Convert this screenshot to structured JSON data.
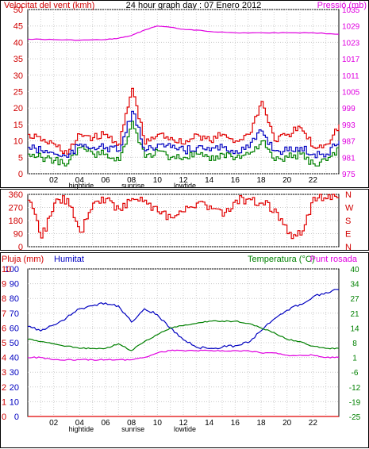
{
  "chart_data": [
    {
      "type": "line",
      "title": "24 hour graph day : 07 Enero 2012",
      "left_axis_label": "Velocitat del vent (kmh)",
      "right_axis_label": "Pressió (mb)",
      "left_ticks": [
        "0",
        "5",
        "10",
        "15",
        "20",
        "25",
        "30",
        "35",
        "40",
        "45",
        "50"
      ],
      "left_ylim": [
        0,
        50
      ],
      "right_ticks": [
        "975",
        "981",
        "987",
        "993",
        "999",
        "1005",
        "1011",
        "1017",
        "1023",
        "1029",
        "1035"
      ],
      "right_ylim": [
        975,
        1035
      ],
      "x_ticks": [
        "02",
        "04",
        "06",
        "08",
        "10",
        "12",
        "14",
        "16",
        "18",
        "20",
        "22"
      ],
      "x_annotations": [
        {
          "label": "hightide",
          "at": "04"
        },
        {
          "label": "sunrise",
          "at": "08"
        },
        {
          "label": "lowtide",
          "at": "12"
        }
      ],
      "grid": true,
      "colors": {
        "gust": "#e00000",
        "wind": "#008000",
        "avg": "#0000c0",
        "pressure": "#e000e0"
      },
      "series": [
        {
          "role": "pressure",
          "axis": "right",
          "x": [
            0,
            2,
            4,
            6,
            7,
            8,
            9,
            10,
            11,
            12,
            13,
            14,
            16,
            18,
            20,
            22,
            24
          ],
          "values": [
            1024.2,
            1024.0,
            1023.8,
            1024.0,
            1024.5,
            1025.5,
            1027.5,
            1029.0,
            1028.5,
            1027.8,
            1027.5,
            1027.0,
            1026.5,
            1026.5,
            1026.5,
            1026.5,
            1026.0
          ]
        },
        {
          "role": "gust",
          "axis": "left",
          "x": [
            0,
            1,
            2,
            3,
            4,
            5,
            6,
            7,
            8,
            9,
            10,
            11,
            12,
            13,
            14,
            15,
            16,
            17,
            18,
            19,
            20,
            21,
            22,
            23,
            24
          ],
          "values": [
            12,
            10,
            9,
            6,
            12,
            11,
            12,
            9,
            26,
            9,
            12,
            11,
            9,
            12,
            10,
            12,
            10,
            12,
            22,
            10,
            12,
            14,
            8,
            9,
            15
          ]
        },
        {
          "role": "wind",
          "axis": "left",
          "x": [
            0,
            1,
            2,
            3,
            4,
            5,
            6,
            7,
            8,
            9,
            10,
            11,
            12,
            13,
            14,
            15,
            16,
            17,
            18,
            19,
            20,
            21,
            22,
            23,
            24
          ],
          "values": [
            6,
            5,
            4,
            3,
            8,
            6,
            6,
            4,
            16,
            5,
            7,
            5,
            5,
            6,
            4,
            6,
            5,
            6,
            10,
            4,
            5,
            6,
            3,
            4,
            8
          ]
        },
        {
          "role": "avg",
          "axis": "left",
          "x": [
            0,
            1,
            2,
            3,
            4,
            5,
            6,
            7,
            8,
            9,
            10,
            11,
            12,
            13,
            14,
            15,
            16,
            17,
            18,
            19,
            20,
            21,
            22,
            23,
            24
          ],
          "values": [
            8,
            7,
            6,
            5,
            9,
            8,
            8,
            7,
            19,
            7,
            9,
            8,
            7,
            8,
            7,
            8,
            7,
            8,
            13,
            7,
            7,
            8,
            6,
            6,
            10
          ]
        }
      ]
    },
    {
      "type": "line",
      "left_ticks": [
        "0",
        "90",
        "180",
        "270",
        "360"
      ],
      "right_ticks": [
        "N",
        "E",
        "S",
        "W",
        "N"
      ],
      "ylim": [
        0,
        360
      ],
      "grid": true,
      "colors": {
        "dir": "#e00000"
      },
      "series": [
        {
          "role": "wind-direction",
          "x": [
            0,
            1,
            2,
            3,
            4,
            5,
            6,
            7,
            8,
            9,
            10,
            11,
            12,
            13,
            14,
            15,
            16,
            17,
            18,
            19,
            20,
            21,
            22,
            23,
            24
          ],
          "values": [
            320,
            60,
            300,
            330,
            100,
            300,
            330,
            260,
            330,
            320,
            240,
            200,
            240,
            300,
            280,
            210,
            320,
            330,
            300,
            260,
            90,
            80,
            340,
            330,
            335
          ]
        }
      ]
    },
    {
      "type": "line",
      "labels": {
        "rain": "Pluja (mm)",
        "hum": "Humitat",
        "temp": "Temperatura (°C)",
        "dew": "Punt rosada"
      },
      "rain_ticks": [
        "0",
        "1",
        "2",
        "3",
        "4",
        "5",
        "6",
        "7",
        "8",
        "9",
        "10"
      ],
      "hum_ticks": [
        "0",
        "10",
        "20",
        "30",
        "40",
        "50",
        "60",
        "70",
        "80",
        "90",
        "100"
      ],
      "temp_ticks": [
        "-25",
        "-19",
        "-12",
        "-6",
        "1",
        "8",
        "14",
        "21",
        "27",
        "34",
        "40"
      ],
      "x_ticks": [
        "02",
        "04",
        "06",
        "08",
        "10",
        "12",
        "14",
        "16",
        "18",
        "20",
        "22"
      ],
      "x_annotations": [
        {
          "label": "hightide",
          "at": "04"
        },
        {
          "label": "sunrise",
          "at": "08"
        },
        {
          "label": "lowtide",
          "at": "12"
        }
      ],
      "grid": true,
      "colors": {
        "rain": "#e00000",
        "hum": "#0000c0",
        "temp": "#008000",
        "dew": "#e000e0"
      },
      "series": [
        {
          "role": "humidity",
          "axis": "hum",
          "x": [
            0,
            1,
            2,
            3,
            4,
            5,
            6,
            7,
            8,
            9,
            10,
            11,
            12,
            13,
            14,
            15,
            16,
            17,
            18,
            19,
            20,
            21,
            22,
            23,
            24
          ],
          "values": [
            61,
            58,
            62,
            67,
            73,
            75,
            77,
            75,
            64,
            73,
            69,
            60,
            52,
            47,
            46,
            47,
            48,
            50,
            58,
            66,
            72,
            76,
            81,
            84,
            86
          ]
        },
        {
          "role": "temperature",
          "axis": "temp",
          "x": [
            0,
            1,
            2,
            3,
            4,
            5,
            6,
            7,
            8,
            9,
            10,
            11,
            12,
            13,
            14,
            15,
            16,
            17,
            18,
            19,
            20,
            21,
            22,
            23,
            24
          ],
          "values": [
            9,
            8,
            7,
            6,
            5,
            5,
            5,
            7,
            4,
            8,
            11,
            14,
            15,
            16,
            17,
            17,
            17,
            16,
            14,
            12,
            9,
            8,
            6,
            5,
            5
          ]
        },
        {
          "role": "dew-point",
          "axis": "temp",
          "x": [
            0,
            1,
            2,
            3,
            4,
            5,
            6,
            7,
            8,
            9,
            10,
            11,
            12,
            13,
            14,
            15,
            16,
            17,
            18,
            19,
            20,
            21,
            22,
            23,
            24
          ],
          "values": [
            1,
            1,
            0,
            0,
            0,
            0,
            0,
            0,
            0,
            1,
            3,
            4,
            4,
            4,
            4,
            4,
            4,
            4,
            3,
            3,
            2,
            2,
            2,
            1,
            1
          ]
        },
        {
          "role": "rain",
          "axis": "rain",
          "x": [
            0,
            24
          ],
          "values": [
            0,
            0
          ]
        }
      ]
    }
  ]
}
